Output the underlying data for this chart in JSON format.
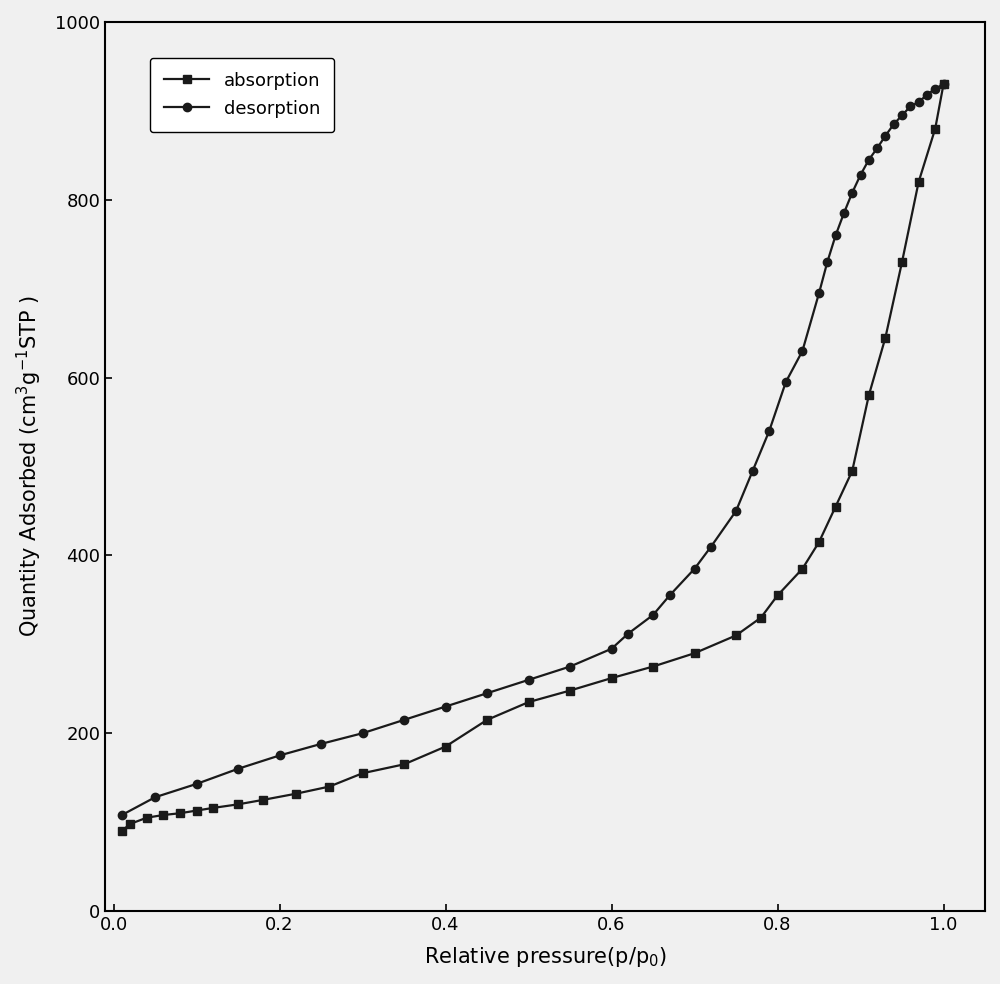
{
  "absorption_x": [
    0.01,
    0.02,
    0.04,
    0.06,
    0.08,
    0.1,
    0.12,
    0.15,
    0.18,
    0.22,
    0.26,
    0.3,
    0.35,
    0.4,
    0.45,
    0.5,
    0.55,
    0.6,
    0.65,
    0.7,
    0.75,
    0.78,
    0.8,
    0.83,
    0.85,
    0.87,
    0.89,
    0.91,
    0.93,
    0.95,
    0.97,
    0.99,
    1.0
  ],
  "absorption_y": [
    90,
    98,
    105,
    108,
    110,
    113,
    116,
    120,
    125,
    132,
    140,
    155,
    165,
    185,
    215,
    235,
    248,
    262,
    275,
    290,
    310,
    330,
    355,
    385,
    415,
    455,
    495,
    580,
    645,
    730,
    820,
    880,
    930
  ],
  "desorption_x": [
    1.0,
    0.99,
    0.98,
    0.97,
    0.96,
    0.95,
    0.94,
    0.93,
    0.92,
    0.91,
    0.9,
    0.89,
    0.88,
    0.87,
    0.86,
    0.85,
    0.83,
    0.81,
    0.79,
    0.77,
    0.75,
    0.72,
    0.7,
    0.67,
    0.65,
    0.62,
    0.6,
    0.55,
    0.5,
    0.45,
    0.4,
    0.35,
    0.3,
    0.25,
    0.2,
    0.15,
    0.1,
    0.05,
    0.01
  ],
  "desorption_y": [
    930,
    925,
    918,
    910,
    905,
    895,
    885,
    872,
    858,
    845,
    828,
    808,
    785,
    760,
    730,
    695,
    630,
    595,
    540,
    495,
    450,
    410,
    385,
    355,
    333,
    312,
    295,
    275,
    260,
    245,
    230,
    215,
    200,
    188,
    175,
    160,
    143,
    128,
    108
  ],
  "xlabel": "Relative pressure(p/p$_0$)",
  "ylabel": "Quantity Adsorbed (cm$^3$g$^{-1}$STP )",
  "xlim": [
    -0.01,
    1.05
  ],
  "ylim": [
    0,
    1000
  ],
  "xticks": [
    0.0,
    0.2,
    0.4,
    0.6,
    0.8,
    1.0
  ],
  "yticks": [
    0,
    200,
    400,
    600,
    800,
    1000
  ],
  "line_color": "#1a1a1a",
  "marker_color": "#1a1a1a",
  "background_color": "#f0f0f0",
  "legend_absorption": "absorption",
  "legend_desorption": "desorption",
  "absorption_marker": "s",
  "desorption_marker": "o",
  "markersize": 6,
  "linewidth": 1.6
}
